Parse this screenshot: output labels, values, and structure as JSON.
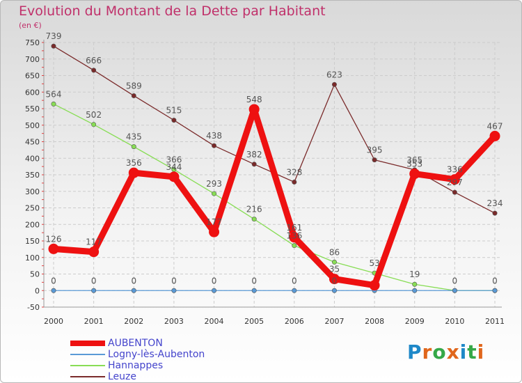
{
  "header": {
    "title": "Evolution du Montant de la Dette par Habitant",
    "unit": "(en €)"
  },
  "logo": {
    "text": "Proxiti",
    "letters": [
      "P",
      "r",
      "o",
      "x",
      "i",
      "t",
      "i"
    ],
    "colors": [
      "#1e88c8",
      "#e0661c",
      "#35a848",
      "#e0661c",
      "#1e88c8",
      "#35a848",
      "#e0661c"
    ]
  },
  "chart_data": {
    "type": "line",
    "title": "Evolution du Montant de la Dette par Habitant",
    "ylabel": "(en €)",
    "xlabel": "",
    "x": [
      "2000",
      "2001",
      "2002",
      "2003",
      "2004",
      "2005",
      "2006",
      "2007",
      "2008",
      "2009",
      "2010",
      "2011"
    ],
    "ylim": [
      -50,
      750
    ],
    "yticks": [
      -50,
      0,
      50,
      100,
      150,
      200,
      250,
      300,
      350,
      400,
      450,
      500,
      550,
      600,
      650,
      700,
      750
    ],
    "grid": true,
    "legend_position": "bottom-left",
    "series": [
      {
        "name": "AUBENTON",
        "color": "#ee1111",
        "emphasis": true,
        "values": [
          126,
          117,
          356,
          344,
          177,
          548,
          161,
          35,
          16,
          353,
          336,
          467
        ],
        "labels": [
          "126",
          "117",
          "356",
          "344",
          "177",
          "548",
          "161",
          "35",
          "",
          "353",
          "336",
          "467"
        ]
      },
      {
        "name": "Logny-lès-Aubenton",
        "color": "#5a9ad6",
        "values": [
          0,
          0,
          0,
          0,
          0,
          0,
          0,
          0,
          0,
          0,
          0,
          0
        ],
        "labels": [
          "0",
          "0",
          "0",
          "0",
          "0",
          "0",
          "0",
          "0",
          "",
          "",
          "0",
          "0"
        ]
      },
      {
        "name": "Hannappes",
        "color": "#88dd55",
        "values": [
          564,
          502,
          435,
          366,
          293,
          216,
          136,
          86,
          53,
          19,
          0,
          0
        ],
        "labels": [
          "564",
          "502",
          "435",
          "366",
          "293",
          "216",
          "136",
          "86",
          "53",
          "19",
          "",
          ""
        ]
      },
      {
        "name": "Leuze",
        "color": "#7a2a2a",
        "values": [
          739,
          666,
          589,
          515,
          438,
          382,
          328,
          623,
          395,
          365,
          297,
          234
        ],
        "labels": [
          "739",
          "666",
          "589",
          "515",
          "438",
          "382",
          "328",
          "623",
          "395",
          "365",
          "297",
          "234"
        ]
      }
    ]
  }
}
